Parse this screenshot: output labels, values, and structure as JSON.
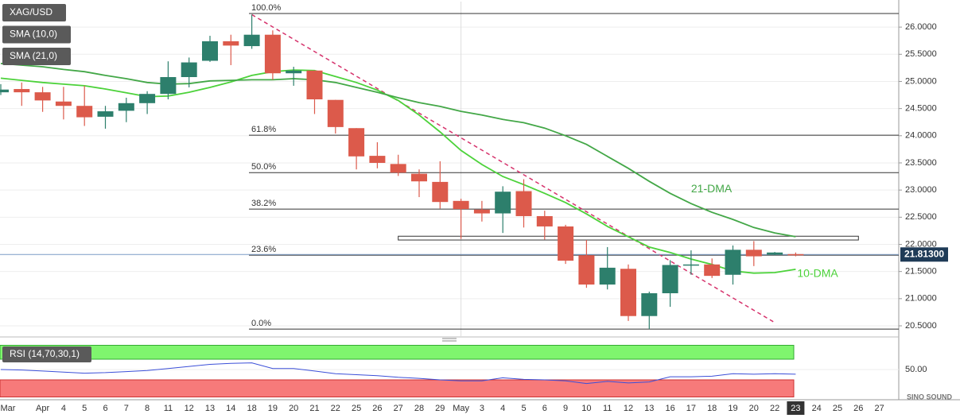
{
  "chart_data": {
    "type": "candlestick",
    "symbol": "XAG/USD",
    "categories": [
      "Mar",
      null,
      "Apr",
      "4",
      "5",
      "6",
      "7",
      "8",
      "11",
      "12",
      "13",
      "14",
      "18",
      "19",
      "20",
      "21",
      "22",
      "25",
      "26",
      "27",
      "28",
      "29",
      "May",
      "3",
      "4",
      "5",
      "6",
      "9",
      "10",
      "11",
      "12",
      "13",
      "16",
      "17",
      "18",
      "19",
      "20",
      "22",
      "23",
      "24",
      "25",
      "26",
      "27"
    ],
    "open": [
      24.8,
      24.86,
      24.8,
      24.63,
      24.55,
      24.35,
      24.46,
      24.6,
      24.77,
      25.08,
      25.38,
      25.74,
      25.65,
      25.86,
      25.15,
      25.2,
      24.66,
      24.14,
      23.63,
      23.48,
      23.3,
      23.15,
      22.8,
      22.64,
      22.57,
      22.98,
      22.52,
      22.33,
      21.8,
      21.26,
      21.55,
      20.68,
      21.1,
      21.62,
      21.63,
      21.44,
      21.9,
      21.81,
      21.82,
      null,
      null,
      null,
      null
    ],
    "high": [
      24.95,
      24.98,
      24.9,
      24.9,
      24.92,
      24.55,
      24.7,
      24.82,
      25.37,
      25.44,
      25.84,
      25.86,
      26.23,
      25.94,
      25.27,
      25.2,
      24.66,
      24.14,
      23.88,
      23.65,
      23.38,
      23.53,
      22.84,
      22.8,
      23.07,
      23.2,
      22.62,
      22.36,
      22.08,
      21.95,
      21.63,
      21.13,
      21.71,
      21.89,
      21.74,
      21.98,
      22.06,
      21.86,
      21.85,
      null,
      null,
      null,
      null
    ],
    "low": [
      24.75,
      24.55,
      24.44,
      24.3,
      24.18,
      24.13,
      24.25,
      24.4,
      24.67,
      24.89,
      25.36,
      25.3,
      25.6,
      25.03,
      24.92,
      24.4,
      24.04,
      23.38,
      23.4,
      23.26,
      22.87,
      22.66,
      22.1,
      22.42,
      22.21,
      22.31,
      22.09,
      21.64,
      21.2,
      21.17,
      20.59,
      20.44,
      20.85,
      21.44,
      21.38,
      21.26,
      21.6,
      21.8,
      21.78,
      null,
      null,
      null,
      null
    ],
    "close": [
      24.85,
      24.8,
      24.65,
      24.55,
      24.34,
      24.45,
      24.6,
      24.77,
      25.08,
      25.35,
      25.74,
      25.66,
      25.86,
      25.15,
      25.2,
      24.67,
      24.16,
      23.62,
      23.5,
      23.32,
      23.16,
      22.78,
      22.65,
      22.57,
      22.97,
      22.52,
      22.33,
      21.7,
      21.26,
      21.57,
      20.68,
      21.1,
      21.62,
      21.63,
      21.42,
      21.9,
      21.78,
      21.85,
      21.8,
      null,
      null,
      null,
      null
    ],
    "colors": {
      "up": "#2d7f6c",
      "down": "#dc5a4b"
    },
    "ylim": [
      20.31,
      26.47
    ],
    "yticks": [
      {
        "value": 20.5,
        "label": "20.5000"
      },
      {
        "value": 21,
        "label": "21.0000"
      },
      {
        "value": 21.5,
        "label": "21.5000"
      },
      {
        "value": 22,
        "label": "22.0000"
      },
      {
        "value": 22.5,
        "label": "22.5000"
      },
      {
        "value": 23,
        "label": "23.0000"
      },
      {
        "value": 23.5,
        "label": "23.5000"
      },
      {
        "value": 24,
        "label": "24.0000"
      },
      {
        "value": 24.5,
        "label": "24.5000"
      },
      {
        "value": 25,
        "label": "25.0000"
      },
      {
        "value": 25.5,
        "label": "25.5000"
      },
      {
        "value": 26,
        "label": "26.0000"
      }
    ],
    "grid": true,
    "last": {
      "value": 21.813,
      "label": "21.81300"
    },
    "series": [
      {
        "name": "SMA (10,0)",
        "label": "10-DMA",
        "color": "#4cd23a",
        "values": [
          25.06,
          25.02,
          24.98,
          24.95,
          24.92,
          24.86,
          24.79,
          24.72,
          24.73,
          24.8,
          24.89,
          24.99,
          25.11,
          25.18,
          25.21,
          25.2,
          25.09,
          24.98,
          24.84,
          24.65,
          24.38,
          24.07,
          23.73,
          23.47,
          23.25,
          23.1,
          22.94,
          22.77,
          22.56,
          22.33,
          22.14,
          21.95,
          21.85,
          21.73,
          21.63,
          21.51,
          21.47,
          21.48,
          21.54,
          null,
          null,
          null,
          null
        ]
      },
      {
        "name": "SMA (21,0)",
        "label": "21-DMA",
        "color": "#43a747",
        "values": [
          25.33,
          25.3,
          25.27,
          25.22,
          25.18,
          25.11,
          25.05,
          24.98,
          24.95,
          24.96,
          25.01,
          25.02,
          25.03,
          25.03,
          25.05,
          25.03,
          24.98,
          24.89,
          24.8,
          24.7,
          24.61,
          24.54,
          24.45,
          24.38,
          24.3,
          24.24,
          24.14,
          24.0,
          23.84,
          23.62,
          23.4,
          23.16,
          22.94,
          22.75,
          22.59,
          22.46,
          22.31,
          22.21,
          22.14,
          null,
          null,
          null,
          null
        ]
      }
    ],
    "fib": [
      {
        "label": "100.0%",
        "value": 26.25
      },
      {
        "label": "61.8%",
        "value": 24.01
      },
      {
        "label": "50.0%",
        "value": 23.32
      },
      {
        "label": "38.2%",
        "value": 22.65
      },
      {
        "label": "23.6%",
        "value": 21.8
      },
      {
        "label": "0.0%",
        "value": 20.44
      }
    ],
    "trendline": {
      "x": [
        12,
        37
      ],
      "y": [
        26.23,
        20.56
      ],
      "color": "#d6336c"
    },
    "zone": {
      "x": [
        19,
        41
      ],
      "y": [
        22.08,
        22.15
      ]
    },
    "rsi": {
      "name": "RSI (14,70,30,1)",
      "color": "#3b4fd8",
      "ylim": [
        0,
        100
      ],
      "yticks": [
        {
          "value": 50,
          "label": "50.00"
        }
      ],
      "levels": [
        30,
        70
      ],
      "values": [
        50,
        49,
        47,
        45,
        43,
        44,
        46,
        48,
        52,
        56,
        60,
        62,
        63,
        52,
        52,
        47,
        42,
        40,
        38,
        35,
        33,
        30,
        28,
        28,
        34,
        31,
        30,
        28,
        23,
        27,
        24,
        26,
        36,
        36,
        37,
        42,
        41,
        42,
        41,
        null,
        null,
        null,
        null
      ]
    },
    "watermark": "SINO SOUND"
  }
}
